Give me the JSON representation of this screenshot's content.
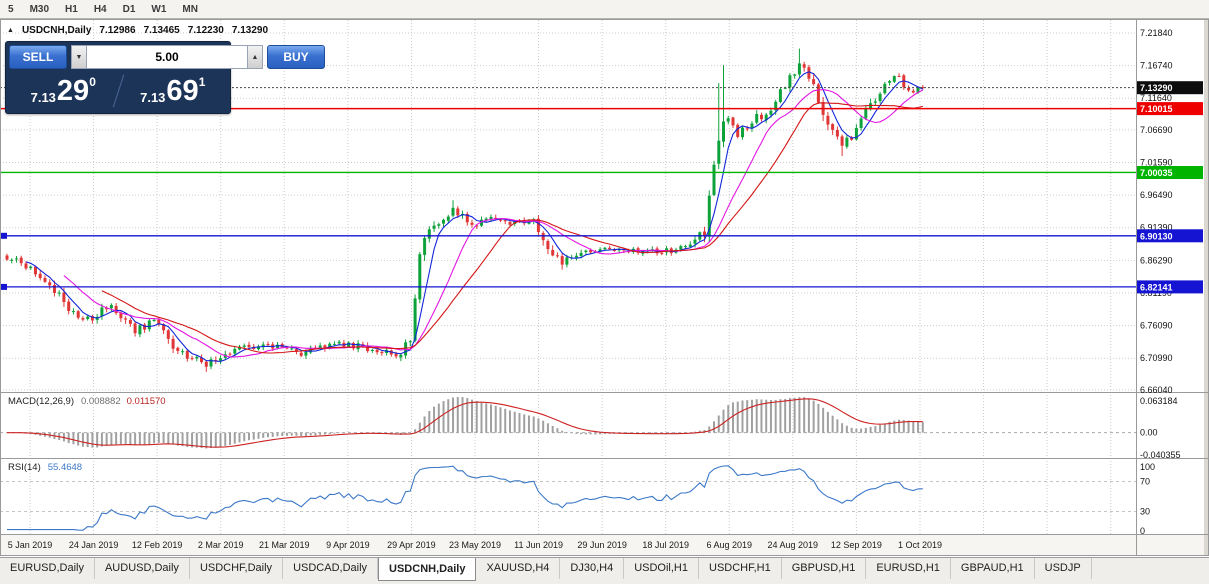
{
  "toolbar": {
    "periods": [
      "5",
      "M30",
      "H1",
      "H4",
      "D1",
      "W1",
      "MN"
    ]
  },
  "chart": {
    "collapse_icon": "▲",
    "title": "USDCNH,Daily",
    "open": "7.12986",
    "high": "7.13465",
    "low": "7.12230",
    "close": "7.13290"
  },
  "trade_panel": {
    "sell_label": "SELL",
    "buy_label": "BUY",
    "volume": "5.00",
    "spinner_down": "▼",
    "spinner_up": "▲",
    "bid": {
      "prefix": "7.13",
      "big": "29",
      "sup": "0"
    },
    "ask": {
      "prefix": "7.13",
      "big": "69",
      "sup": "1"
    }
  },
  "chart_data": {
    "type": "candlestick",
    "symbol": "USDCNH",
    "timeframe": "Daily",
    "up_color": "#0ea23b",
    "down_color": "#e03636",
    "y_axis": {
      "range": [
        6.6571,
        7.2387
      ],
      "ticks": [
        "7.21840",
        "7.16740",
        "7.11640",
        "7.06690",
        "7.01590",
        "6.96490",
        "6.91390",
        "6.86290",
        "6.81190",
        "6.76090",
        "6.70990",
        "6.66040"
      ]
    },
    "current_price": {
      "value": 7.1329,
      "label": "7.13290",
      "badge_color": "#0d0d0d"
    },
    "hlines": [
      {
        "price": 7.10015,
        "label": "7.10015",
        "color": "#ee0000",
        "width": 1.4
      },
      {
        "price": 7.00035,
        "label": "7.00035",
        "color": "#00b400",
        "width": 1.3
      },
      {
        "price": 6.9013,
        "label": "6.90130",
        "color": "#1414d2",
        "width": 1.3,
        "edge_marker": true
      },
      {
        "price": 6.82141,
        "label": "6.82141",
        "color": "#1414d2",
        "width": 1.3,
        "edge_marker": true
      }
    ],
    "x_labels": [
      "5 Jan 2019",
      "24 Jan 2019",
      "12 Feb 2019",
      "2 Mar 2019",
      "21 Mar 2019",
      "9 Apr 2019",
      "29 Apr 2019",
      "23 May 2019",
      "11 Jun 2019",
      "29 Jun 2019",
      "18 Jul 2019",
      "6 Aug 2019",
      "24 Aug 2019",
      "12 Sep 2019",
      "1 Oct 2019"
    ],
    "candle_gen": {
      "count": 194,
      "seed": 20,
      "noise": 0.0045,
      "last_close": 7.1329,
      "keypoints": [
        [
          0,
          6.868
        ],
        [
          7,
          6.842
        ],
        [
          14,
          6.778
        ],
        [
          18,
          6.77
        ],
        [
          22,
          6.796
        ],
        [
          27,
          6.752
        ],
        [
          31,
          6.77
        ],
        [
          36,
          6.718
        ],
        [
          42,
          6.701
        ],
        [
          48,
          6.723
        ],
        [
          55,
          6.731
        ],
        [
          62,
          6.716
        ],
        [
          69,
          6.735
        ],
        [
          76,
          6.726
        ],
        [
          83,
          6.716
        ],
        [
          85,
          6.742
        ],
        [
          87,
          6.872
        ],
        [
          90,
          6.916
        ],
        [
          94,
          6.941
        ],
        [
          98,
          6.917
        ],
        [
          102,
          6.933
        ],
        [
          106,
          6.921
        ],
        [
          111,
          6.928
        ],
        [
          114,
          6.89
        ],
        [
          117,
          6.858
        ],
        [
          121,
          6.879
        ],
        [
          127,
          6.882
        ],
        [
          133,
          6.876
        ],
        [
          139,
          6.878
        ],
        [
          144,
          6.884
        ],
        [
          147,
          6.903
        ],
        [
          148,
          6.962
        ],
        [
          150,
          7.058
        ],
        [
          152,
          7.088
        ],
        [
          154,
          7.058
        ],
        [
          157,
          7.083
        ],
        [
          160,
          7.093
        ],
        [
          163,
          7.125
        ],
        [
          167,
          7.166
        ],
        [
          169,
          7.152
        ],
        [
          172,
          7.098
        ],
        [
          176,
          7.042
        ],
        [
          179,
          7.068
        ],
        [
          182,
          7.106
        ],
        [
          185,
          7.136
        ],
        [
          188,
          7.152
        ],
        [
          190,
          7.128
        ],
        [
          193,
          7.133
        ]
      ],
      "spikes": [
        {
          "i": 42,
          "low": 6.6885
        },
        {
          "i": 94,
          "high": 6.957
        },
        {
          "i": 117,
          "low": 6.8485
        },
        {
          "i": 150,
          "high": 7.14
        },
        {
          "i": 151,
          "high": 7.168
        },
        {
          "i": 167,
          "high": 7.194
        },
        {
          "i": 176,
          "low": 7.026
        }
      ]
    },
    "ma_lines": [
      {
        "period": 5,
        "color": "#1126d8"
      },
      {
        "period": 13,
        "color": "#e316e3"
      },
      {
        "period": 21,
        "color": "#d41616"
      }
    ],
    "indicators": {
      "macd": {
        "label": "MACD(12,26,9)",
        "value_main": "0.008882",
        "value_signal": "0.011570",
        "fast": 12,
        "slow": 26,
        "signal_period": 9,
        "range": [
          -0.040355,
          0.063184
        ],
        "ticks": [
          {
            "label": "0.063184",
            "value": 0.063184
          },
          {
            "label": "0.00",
            "value": 0
          },
          {
            "label": "-0.040355",
            "value": -0.040355
          }
        ],
        "hist_color": "#a0a0a0",
        "signal_color": "#cc2222"
      },
      "rsi": {
        "label": "RSI(14)",
        "value": "55.4648",
        "period": 14,
        "levels": [
          70,
          30
        ],
        "ticks": [
          {
            "label": "100",
            "value": 100
          },
          {
            "label": "70",
            "value": 70
          },
          {
            "label": "30",
            "value": 30
          },
          {
            "label": "0",
            "value": 0
          }
        ],
        "color": "#3c78c8"
      }
    }
  },
  "tabs": {
    "items": [
      {
        "label": "EURUSD,Daily"
      },
      {
        "label": "AUDUSD,Daily"
      },
      {
        "label": "USDCHF,Daily"
      },
      {
        "label": "USDCAD,Daily"
      },
      {
        "label": "USDCNH,Daily",
        "active": true
      },
      {
        "label": "XAUUSD,H4"
      },
      {
        "label": "DJ30,H4"
      },
      {
        "label": "USDOil,H1"
      },
      {
        "label": "USDCHF,H1"
      },
      {
        "label": "GBPUSD,H1"
      },
      {
        "label": "EURUSD,H1"
      },
      {
        "label": "GBPAUD,H1"
      },
      {
        "label": "USDJP"
      }
    ]
  }
}
